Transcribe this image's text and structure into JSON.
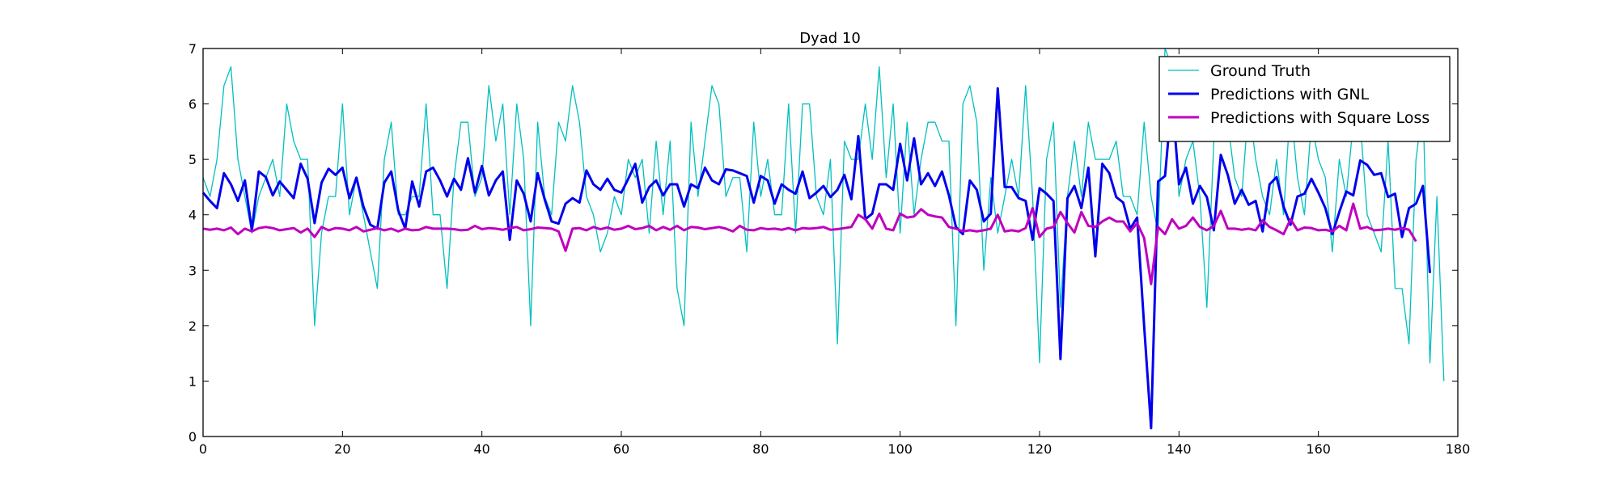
{
  "chart_data": {
    "type": "line",
    "title": "Dyad 10",
    "xlabel": "",
    "ylabel": "",
    "xlim": [
      0,
      180
    ],
    "ylim": [
      0,
      7
    ],
    "xticks": [
      0,
      20,
      40,
      60,
      80,
      100,
      120,
      140,
      160,
      180
    ],
    "yticks": [
      0,
      1,
      2,
      3,
      4,
      5,
      6,
      7
    ],
    "grid": false,
    "legend_position": "top-right",
    "series": [
      {
        "name": "Ground Truth",
        "color": "#00BFBF",
        "width": 1.3,
        "y": [
          4.67,
          4.33,
          5.0,
          6.33,
          6.67,
          5.0,
          4.33,
          3.67,
          4.33,
          4.67,
          5.0,
          4.33,
          6.0,
          5.33,
          5.0,
          5.0,
          2.0,
          3.67,
          4.33,
          4.33,
          6.0,
          4.0,
          4.67,
          4.0,
          3.33,
          2.67,
          5.0,
          5.67,
          4.0,
          4.0,
          4.33,
          4.33,
          6.0,
          4.0,
          4.0,
          2.67,
          4.67,
          5.67,
          5.67,
          4.33,
          4.67,
          6.33,
          5.33,
          6.0,
          4.0,
          6.0,
          5.0,
          2.0,
          5.67,
          4.33,
          4.0,
          5.67,
          5.33,
          6.33,
          5.67,
          4.33,
          4.0,
          3.33,
          3.67,
          4.33,
          4.0,
          5.0,
          4.67,
          5.0,
          3.67,
          5.33,
          4.0,
          5.33,
          2.67,
          2.0,
          5.67,
          4.33,
          5.33,
          6.33,
          6.0,
          4.33,
          4.67,
          4.67,
          3.33,
          5.67,
          4.33,
          5.0,
          4.0,
          4.0,
          6.0,
          3.67,
          6.0,
          6.0,
          4.33,
          4.0,
          5.0,
          1.67,
          5.33,
          5.0,
          5.0,
          6.0,
          5.0,
          6.67,
          4.67,
          6.0,
          3.67,
          5.67,
          4.0,
          5.0,
          5.67,
          5.67,
          5.33,
          5.33,
          2.0,
          6.0,
          6.33,
          5.67,
          3.0,
          4.67,
          3.67,
          4.33,
          5.0,
          4.33,
          6.33,
          4.33,
          1.33,
          5.0,
          5.67,
          2.33,
          4.33,
          5.33,
          4.33,
          5.67,
          5.0,
          5.0,
          5.0,
          5.33,
          4.33,
          4.33,
          4.0,
          5.67,
          4.33,
          3.67,
          7.0,
          6.67,
          4.33,
          5.0,
          5.33,
          4.33,
          2.33,
          5.33,
          5.67,
          5.67,
          4.67,
          4.33,
          6.0,
          5.0,
          4.33,
          4.0,
          5.0,
          4.0,
          6.0,
          4.67,
          4.0,
          5.67,
          5.0,
          4.67,
          3.33,
          5.0,
          4.33,
          5.67,
          5.67,
          4.0,
          3.67,
          3.33,
          5.33,
          2.67,
          2.67,
          1.67,
          5.0,
          6.0,
          1.33,
          4.33,
          1.0
        ]
      },
      {
        "name": "Predictions with GNL",
        "color": "#0000EE",
        "width": 3,
        "y": [
          4.4,
          4.25,
          4.12,
          4.75,
          4.55,
          4.25,
          4.62,
          3.72,
          4.78,
          4.68,
          4.35,
          4.6,
          4.45,
          4.3,
          4.92,
          4.65,
          3.85,
          4.58,
          4.83,
          4.72,
          4.85,
          4.3,
          4.67,
          4.15,
          3.82,
          3.75,
          4.58,
          4.78,
          4.08,
          3.75,
          4.6,
          4.15,
          4.78,
          4.85,
          4.62,
          4.33,
          4.65,
          4.45,
          5.02,
          4.4,
          4.88,
          4.35,
          4.62,
          4.78,
          3.55,
          4.62,
          4.38,
          3.88,
          4.75,
          4.28,
          3.88,
          3.84,
          4.2,
          4.3,
          4.22,
          4.8,
          4.55,
          4.45,
          4.65,
          4.45,
          4.4,
          4.65,
          4.92,
          4.22,
          4.5,
          4.62,
          4.35,
          4.55,
          4.55,
          4.15,
          4.55,
          4.48,
          4.85,
          4.62,
          4.55,
          4.82,
          4.8,
          4.75,
          4.7,
          4.22,
          4.7,
          4.62,
          4.2,
          4.55,
          4.45,
          4.38,
          4.78,
          4.3,
          4.4,
          4.52,
          4.32,
          4.45,
          4.72,
          4.28,
          5.42,
          3.92,
          4.02,
          4.55,
          4.55,
          4.45,
          5.28,
          4.62,
          5.38,
          4.55,
          4.75,
          4.52,
          4.78,
          4.35,
          3.78,
          3.65,
          4.62,
          4.45,
          3.88,
          4.02,
          6.28,
          4.5,
          4.5,
          4.3,
          4.25,
          3.55,
          4.48,
          4.38,
          4.25,
          1.4,
          4.3,
          4.52,
          4.12,
          4.85,
          3.25,
          4.92,
          4.75,
          4.32,
          4.22,
          3.75,
          3.95,
          2.0,
          0.15,
          4.6,
          4.7,
          6.12,
          4.55,
          4.85,
          4.2,
          4.52,
          4.32,
          3.72,
          5.08,
          4.72,
          4.2,
          4.45,
          4.18,
          4.25,
          3.7,
          4.55,
          4.68,
          4.15,
          3.82,
          4.33,
          4.38,
          4.65,
          4.4,
          4.12,
          3.65,
          4.05,
          4.42,
          4.35,
          4.98,
          4.9,
          4.72,
          4.75,
          4.32,
          4.38,
          3.6,
          4.12,
          4.2,
          4.52,
          2.95
        ]
      },
      {
        "name": "Predictions with Square Loss",
        "color": "#BF00BF",
        "width": 3,
        "y": [
          3.75,
          3.73,
          3.75,
          3.72,
          3.77,
          3.65,
          3.75,
          3.7,
          3.76,
          3.78,
          3.76,
          3.72,
          3.74,
          3.76,
          3.68,
          3.75,
          3.6,
          3.78,
          3.72,
          3.76,
          3.75,
          3.72,
          3.78,
          3.7,
          3.73,
          3.76,
          3.72,
          3.75,
          3.7,
          3.75,
          3.72,
          3.73,
          3.78,
          3.75,
          3.75,
          3.75,
          3.74,
          3.72,
          3.73,
          3.8,
          3.74,
          3.76,
          3.75,
          3.73,
          3.76,
          3.78,
          3.72,
          3.74,
          3.77,
          3.76,
          3.75,
          3.7,
          3.35,
          3.75,
          3.76,
          3.72,
          3.78,
          3.74,
          3.77,
          3.73,
          3.75,
          3.8,
          3.74,
          3.76,
          3.8,
          3.72,
          3.78,
          3.73,
          3.8,
          3.72,
          3.78,
          3.77,
          3.74,
          3.76,
          3.78,
          3.75,
          3.7,
          3.8,
          3.73,
          3.72,
          3.76,
          3.74,
          3.75,
          3.73,
          3.76,
          3.72,
          3.76,
          3.75,
          3.76,
          3.78,
          3.73,
          3.74,
          3.76,
          3.78,
          4.0,
          3.92,
          3.75,
          4.02,
          3.75,
          3.72,
          4.02,
          3.95,
          3.97,
          4.1,
          4.0,
          3.97,
          3.95,
          3.78,
          3.75,
          3.7,
          3.72,
          3.7,
          3.72,
          3.75,
          4.0,
          3.7,
          3.72,
          3.7,
          3.76,
          4.12,
          3.6,
          3.75,
          3.78,
          4.05,
          3.85,
          3.68,
          4.05,
          3.8,
          3.78,
          3.88,
          3.95,
          3.88,
          3.88,
          3.7,
          3.85,
          3.58,
          2.75,
          3.78,
          3.65,
          3.92,
          3.75,
          3.8,
          3.95,
          3.78,
          3.72,
          3.8,
          4.07,
          3.75,
          3.75,
          3.73,
          3.75,
          3.72,
          3.9,
          3.78,
          3.72,
          3.65,
          3.92,
          3.72,
          3.77,
          3.76,
          3.72,
          3.73,
          3.7,
          3.8,
          3.72,
          4.2,
          3.75,
          3.78,
          3.72,
          3.73,
          3.75,
          3.73,
          3.76,
          3.73,
          3.52
        ]
      }
    ]
  }
}
